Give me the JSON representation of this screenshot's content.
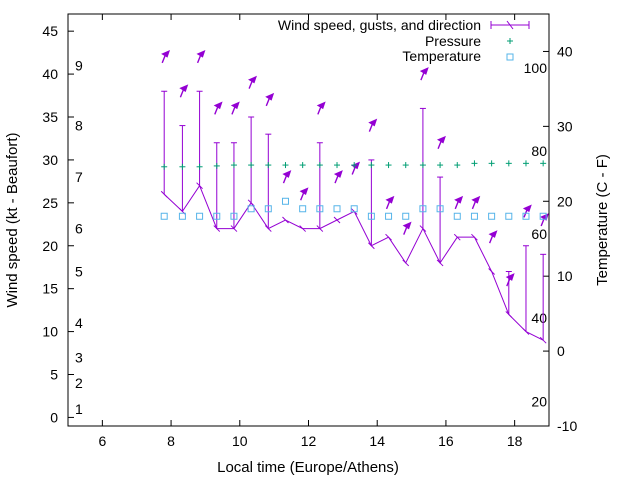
{
  "chart_data": {
    "type": "line",
    "xlabel": "Local time (Europe/Athens)",
    "ylabel": "Wind speed (kt - Beaufort)",
    "y2label": "Temperature (C - F)",
    "xlim": [
      5,
      19
    ],
    "ylim": [
      -1,
      47
    ],
    "y2lim": [
      -10,
      45
    ],
    "x_ticks": [
      6,
      8,
      10,
      12,
      14,
      16,
      18
    ],
    "y_ticks": [
      0,
      5,
      10,
      15,
      20,
      25,
      30,
      35,
      40,
      45
    ],
    "y2_ticks": [
      -10,
      0,
      10,
      20,
      30,
      40
    ],
    "beaufort_labels": [
      {
        "text": "1",
        "y": 1
      },
      {
        "text": "2",
        "y": 4
      },
      {
        "text": "3",
        "y": 7
      },
      {
        "text": "4",
        "y": 11
      },
      {
        "text": "5",
        "y": 17
      },
      {
        "text": "6",
        "y": 22
      },
      {
        "text": "7",
        "y": 28
      },
      {
        "text": "8",
        "y": 34
      },
      {
        "text": "9",
        "y": 41
      }
    ],
    "fahrenheit_labels": [
      {
        "text": "20",
        "y2": -6.7
      },
      {
        "text": "40",
        "y2": 4.4
      },
      {
        "text": "60",
        "y2": 15.6
      },
      {
        "text": "80",
        "y2": 26.7
      },
      {
        "text": "100",
        "y2": 37.8
      }
    ],
    "legend": [
      "Wind speed, gusts, and direction",
      "Pressure",
      "Temperature"
    ],
    "colors": {
      "wind": "#9400d3",
      "pressure": "#009e73",
      "temperature": "#56b4e9"
    },
    "wind": {
      "x": [
        7.8,
        8.33,
        8.83,
        9.33,
        9.83,
        10.33,
        10.83,
        11.33,
        11.83,
        12.33,
        12.83,
        13.33,
        13.83,
        14.33,
        14.83,
        15.33,
        15.83,
        16.33,
        16.83,
        17.33,
        17.83,
        18.33,
        18.83
      ],
      "speed": [
        26,
        24,
        27,
        22,
        22,
        25,
        22,
        23,
        22,
        22,
        23,
        24,
        20,
        21,
        18,
        22,
        18,
        21,
        21,
        17,
        12,
        10,
        9
      ],
      "gust": [
        38,
        34,
        38,
        32,
        32,
        35,
        33,
        23,
        22,
        32,
        23,
        24,
        30,
        21,
        18,
        36,
        28,
        21,
        21,
        17,
        17,
        20,
        19
      ],
      "arrow_y": [
        42,
        38,
        42,
        36,
        36,
        39,
        37,
        28,
        26,
        36,
        28,
        29,
        34,
        25,
        22,
        40,
        32,
        25,
        25,
        21,
        16,
        24,
        23
      ]
    },
    "pressure": {
      "x": [
        7.8,
        8.33,
        8.83,
        9.33,
        9.83,
        10.33,
        10.83,
        11.33,
        11.83,
        12.33,
        12.83,
        13.33,
        13.83,
        14.33,
        14.83,
        15.33,
        15.83,
        16.33,
        16.83,
        17.33,
        17.83,
        18.33,
        18.83
      ],
      "y": [
        29.2,
        29.2,
        29.2,
        29.3,
        29.4,
        29.4,
        29.4,
        29.4,
        29.4,
        29.4,
        29.4,
        29.4,
        29.4,
        29.4,
        29.4,
        29.4,
        29.4,
        29.4,
        29.6,
        29.6,
        29.6,
        29.6,
        29.6
      ]
    },
    "temperature": {
      "x": [
        7.8,
        8.33,
        8.83,
        9.33,
        9.83,
        10.33,
        10.83,
        11.33,
        11.83,
        12.33,
        12.83,
        13.33,
        13.83,
        14.33,
        14.83,
        15.33,
        15.83,
        16.33,
        16.83,
        17.33,
        17.83,
        18.33,
        18.83
      ],
      "y2": [
        18,
        18,
        18,
        18,
        18,
        19,
        19,
        20,
        19,
        19,
        19,
        19,
        18,
        18,
        18,
        19,
        19,
        18,
        18,
        18,
        18,
        18,
        18
      ]
    }
  }
}
